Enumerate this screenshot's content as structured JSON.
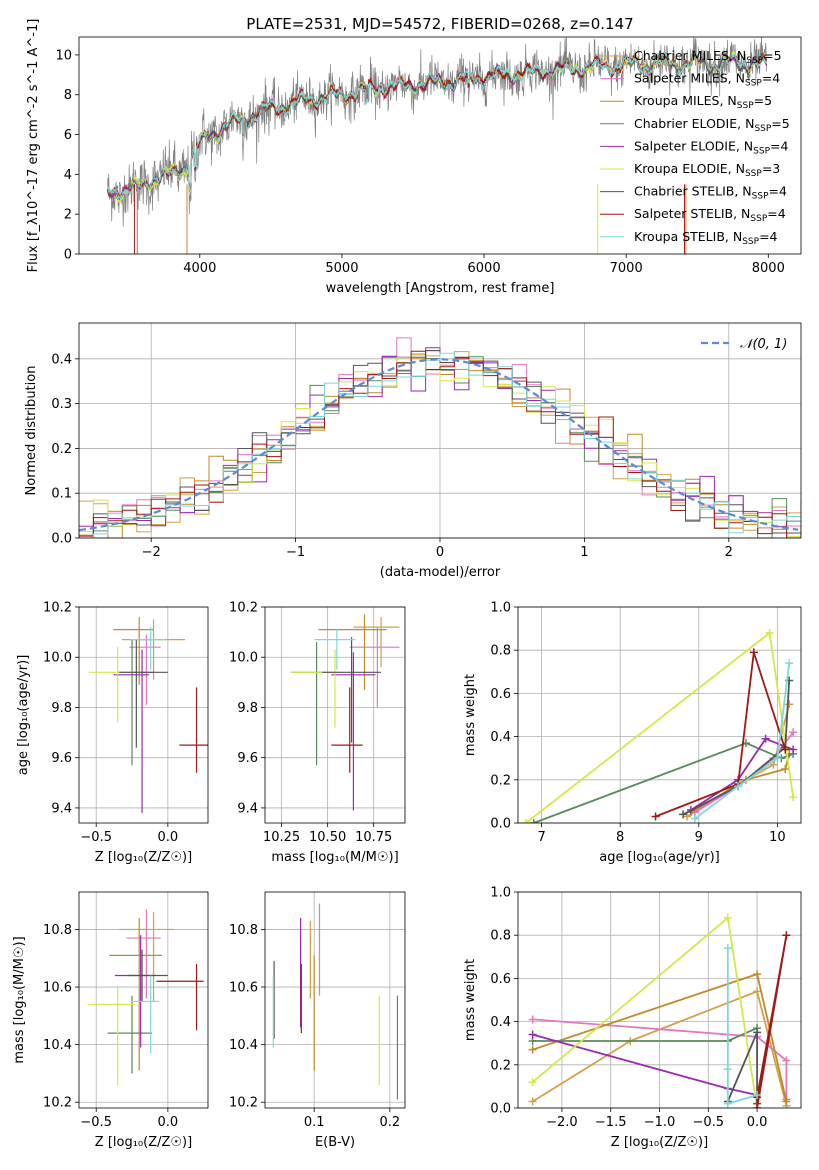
{
  "figure_title": "PLATE=2531, MJD=54572, FIBERID=0268, z=0.147",
  "models": [
    {
      "label": "Chabrier MILES",
      "nssp": "5",
      "color": "#d1a04a"
    },
    {
      "label": "Salpeter MILES",
      "nssp": "4",
      "color": "#e377c2"
    },
    {
      "label": "Kroupa MILES",
      "nssp": "5",
      "color": "#c08a2a"
    },
    {
      "label": "Chabrier ELODIE",
      "nssp": "5",
      "color": "#5a8a5a"
    },
    {
      "label": "Salpeter ELODIE",
      "nssp": "4",
      "color": "#9a2ab0"
    },
    {
      "label": "Kroupa ELODIE",
      "nssp": "3",
      "color": "#d5e84a"
    },
    {
      "label": "Chabrier STELIB",
      "nssp": "4",
      "color": "#555555"
    },
    {
      "label": "Salpeter STELIB",
      "nssp": "4",
      "color": "#a01818"
    },
    {
      "label": "Kroupa STELIB",
      "nssp": "4",
      "color": "#7ed8d8"
    }
  ],
  "chart_data": [
    {
      "id": "spectrum",
      "type": "line",
      "xlabel": "wavelength [Angstrom, rest frame]",
      "ylabel": "Flux [f_λ10^-17 erg cm^-2 s^-1 A^-1]",
      "xlim": [
        3150,
        8230
      ],
      "ylim": [
        0,
        10.9
      ],
      "xticks": [
        4000,
        5000,
        6000,
        7000,
        8000
      ],
      "yticks": [
        0,
        2,
        4,
        6,
        8,
        10
      ],
      "grid": false,
      "legend": "top-right",
      "data_color": "#808080",
      "continuum": {
        "x": [
          3350,
          3500,
          3700,
          3900,
          4000,
          4200,
          4500,
          4800,
          5000,
          5200,
          5500,
          5800,
          6000,
          6300,
          6600,
          7000,
          7400,
          7800,
          8000
        ],
        "y": [
          3.1,
          3.2,
          3.8,
          4.3,
          5.6,
          6.5,
          7.3,
          7.8,
          8.0,
          8.3,
          8.5,
          8.7,
          8.9,
          9.1,
          9.3,
          9.5,
          9.6,
          9.6,
          9.5
        ]
      }
    },
    {
      "id": "residuals",
      "type": "histogram",
      "xlabel": "(data-model)/error",
      "ylabel": "Normed distribution",
      "xlim": [
        -2.5,
        2.5
      ],
      "ylim": [
        0,
        0.48
      ],
      "xticks": [
        -2,
        -1,
        0,
        1,
        2
      ],
      "yticks": [
        0.0,
        0.1,
        0.2,
        0.3,
        0.4
      ],
      "grid": true,
      "legend": "top-right",
      "bin_width": 0.1,
      "reference": {
        "label": "𝒩(0, 1)",
        "color": "#5b8bd6"
      }
    },
    {
      "id": "age_vs_Z",
      "type": "errorbar",
      "xlabel": "Z [log₁₀(Z/Z☉)]",
      "ylabel": "age  [log₁₀(age/yr)]",
      "xlim": [
        -0.62,
        0.28
      ],
      "ylim": [
        9.34,
        10.2
      ],
      "xticks": [
        -0.5,
        0.0
      ],
      "yticks": [
        9.4,
        9.6,
        9.8,
        10.0,
        10.2
      ],
      "grid": true,
      "points": [
        {
          "x": -0.1,
          "y": 10.07,
          "xerr": [
            0.22,
            0.22
          ],
          "yerr": [
            0.16,
            0.08
          ]
        },
        {
          "x": -0.15,
          "y": 10.04,
          "xerr": [
            0.12,
            0.1
          ],
          "yerr": [
            0.23,
            0.05
          ]
        },
        {
          "x": -0.2,
          "y": 10.11,
          "xerr": [
            0.18,
            0.1
          ],
          "yerr": [
            0.22,
            0.05
          ]
        },
        {
          "x": -0.25,
          "y": 9.94,
          "xerr": [
            0.1,
            0.15
          ],
          "yerr": [
            0.37,
            0.13
          ]
        },
        {
          "x": -0.18,
          "y": 9.93,
          "xerr": [
            0.2,
            0.05
          ],
          "yerr": [
            0.55,
            0.1
          ]
        },
        {
          "x": -0.35,
          "y": 9.94,
          "xerr": [
            0.2,
            0.15
          ],
          "yerr": [
            0.2,
            0.1
          ]
        },
        {
          "x": -0.22,
          "y": 9.94,
          "xerr": [
            0.12,
            0.22
          ],
          "yerr": [
            0.3,
            0.13
          ]
        },
        {
          "x": 0.2,
          "y": 9.65,
          "xerr": [
            0.12,
            0.08
          ],
          "yerr": [
            0.11,
            0.23
          ]
        },
        {
          "x": -0.12,
          "y": 10.07,
          "xerr": [
            0.15,
            0.1
          ],
          "yerr": [
            0.12,
            0.05
          ]
        }
      ]
    },
    {
      "id": "age_vs_mass",
      "type": "errorbar",
      "xlabel": "mass [log₁₀(M/M☉)]",
      "ylabel": "",
      "xlim": [
        10.16,
        10.92
      ],
      "ylim": [
        9.34,
        10.2
      ],
      "xticks": [
        10.25,
        10.5,
        10.75
      ],
      "yticks": [
        9.4,
        9.6,
        9.8,
        10.0,
        10.2
      ],
      "grid": true,
      "points": [
        {
          "x": 10.79,
          "y": 10.12,
          "xerr": [
            0.15,
            0.1
          ],
          "yerr": [
            0.16,
            0.04
          ]
        },
        {
          "x": 10.77,
          "y": 10.04,
          "xerr": [
            0.15,
            0.12
          ],
          "yerr": [
            0.24,
            0.08
          ]
        },
        {
          "x": 10.7,
          "y": 10.11,
          "xerr": [
            0.25,
            0.12
          ],
          "yerr": [
            0.24,
            0.06
          ]
        },
        {
          "x": 10.44,
          "y": 9.94,
          "xerr": [
            0.14,
            0.12
          ],
          "yerr": [
            0.37,
            0.12
          ]
        },
        {
          "x": 10.64,
          "y": 9.93,
          "xerr": [
            0.12,
            0.12
          ],
          "yerr": [
            0.54,
            0.09
          ]
        },
        {
          "x": 10.54,
          "y": 9.94,
          "xerr": [
            0.24,
            0.04
          ],
          "yerr": [
            0.22,
            0.09
          ]
        },
        {
          "x": 10.63,
          "y": 9.94,
          "xerr": [
            0.16,
            0.16
          ],
          "yerr": [
            0.28,
            0.14
          ]
        },
        {
          "x": 10.62,
          "y": 9.65,
          "xerr": [
            0.1,
            0.07
          ],
          "yerr": [
            0.11,
            0.23
          ]
        },
        {
          "x": 10.55,
          "y": 10.07,
          "xerr": [
            0.12,
            0.1
          ],
          "yerr": [
            0.12,
            0.04
          ]
        }
      ]
    },
    {
      "id": "weight_vs_age",
      "type": "line",
      "xlabel": "age  [log₁₀(age/yr)]",
      "ylabel": "mass weight",
      "xlim": [
        6.7,
        10.3
      ],
      "ylim": [
        0,
        1
      ],
      "xticks": [
        7,
        8,
        9,
        10
      ],
      "yticks": [
        0.0,
        0.2,
        0.4,
        0.6,
        0.8,
        1.0
      ],
      "grid": true,
      "series": [
        {
          "x": [
            8.85,
            9.5,
            9.95,
            10.15
          ],
          "y": [
            0.03,
            0.18,
            0.27,
            0.55
          ]
        },
        {
          "x": [
            8.95,
            9.5,
            9.95,
            10.2
          ],
          "y": [
            0.05,
            0.17,
            0.3,
            0.42
          ]
        },
        {
          "x": [
            8.9,
            9.6,
            10.1,
            10.15
          ],
          "y": [
            0.05,
            0.2,
            0.25,
            0.32
          ]
        },
        {
          "x": [
            6.9,
            9.6,
            10.05,
            10.2
          ],
          "y": [
            0.0,
            0.37,
            0.3,
            0.32
          ]
        },
        {
          "x": [
            8.9,
            9.5,
            9.85,
            10.2
          ],
          "y": [
            0.06,
            0.2,
            0.39,
            0.34
          ]
        },
        {
          "x": [
            6.8,
            9.9,
            10.2
          ],
          "y": [
            0.0,
            0.88,
            0.12
          ]
        },
        {
          "x": [
            8.8,
            9.5,
            10.1,
            10.15
          ],
          "y": [
            0.04,
            0.17,
            0.35,
            0.66
          ]
        },
        {
          "x": [
            8.45,
            9.5,
            9.7,
            10.1
          ],
          "y": [
            0.03,
            0.18,
            0.79,
            0.34
          ]
        },
        {
          "x": [
            8.95,
            9.5,
            10.0,
            10.15
          ],
          "y": [
            0.02,
            0.17,
            0.3,
            0.74
          ]
        }
      ]
    },
    {
      "id": "mass_vs_Z",
      "type": "errorbar",
      "xlabel": "Z [log₁₀(Z/Z☉)]",
      "ylabel": "mass [log₁₀(M/M☉)]",
      "xlim": [
        -0.62,
        0.28
      ],
      "ylim": [
        10.18,
        10.93
      ],
      "xticks": [
        -0.5,
        0.0
      ],
      "yticks": [
        10.2,
        10.4,
        10.6,
        10.8
      ],
      "grid": true,
      "points": [
        {
          "x": -0.1,
          "y": 10.8,
          "xerr": [
            0.24,
            0.14
          ],
          "yerr": [
            0.25,
            0.06
          ]
        },
        {
          "x": -0.15,
          "y": 10.77,
          "xerr": [
            0.14,
            0.1
          ],
          "yerr": [
            0.21,
            0.1
          ]
        },
        {
          "x": -0.2,
          "y": 10.71,
          "xerr": [
            0.21,
            0.16
          ],
          "yerr": [
            0.4,
            0.13
          ]
        },
        {
          "x": -0.25,
          "y": 10.44,
          "xerr": [
            0.17,
            0.14
          ],
          "yerr": [
            0.14,
            0.13
          ]
        },
        {
          "x": -0.19,
          "y": 10.64,
          "xerr": [
            0.18,
            0.1
          ],
          "yerr": [
            0.25,
            0.14
          ]
        },
        {
          "x": -0.35,
          "y": 10.54,
          "xerr": [
            0.21,
            0.12
          ],
          "yerr": [
            0.28,
            0.06
          ]
        },
        {
          "x": -0.18,
          "y": 10.64,
          "xerr": [
            0.1,
            0.18
          ],
          "yerr": [
            0.09,
            0.09
          ]
        },
        {
          "x": 0.2,
          "y": 10.62,
          "xerr": [
            0.28,
            0.05
          ],
          "yerr": [
            0.17,
            0.06
          ]
        },
        {
          "x": -0.12,
          "y": 10.55,
          "xerr": [
            0.14,
            0.06
          ],
          "yerr": [
            0.18,
            0.09
          ]
        }
      ]
    },
    {
      "id": "mass_vs_EBV",
      "type": "errorbar",
      "xlabel": "E(B-V)",
      "ylabel": "",
      "xlim": [
        0.035,
        0.22
      ],
      "ylim": [
        10.18,
        10.93
      ],
      "xticks": [
        0.1,
        0.2
      ],
      "yticks": [
        10.2,
        10.4,
        10.6,
        10.8
      ],
      "grid": true,
      "points": [
        {
          "x": 0.095,
          "y": 10.72,
          "xerr": [
            0,
            0
          ],
          "yerr": [
            0.16,
            0.11
          ]
        },
        {
          "x": 0.107,
          "y": 10.77,
          "xerr": [
            0,
            0
          ],
          "yerr": [
            0.2,
            0.12
          ]
        },
        {
          "x": 0.1,
          "y": 10.5,
          "xerr": [
            0,
            0
          ],
          "yerr": [
            0.19,
            0.21
          ]
        },
        {
          "x": 0.21,
          "y": 10.39,
          "xerr": [
            0,
            0
          ],
          "yerr": [
            0.18,
            0.18
          ]
        },
        {
          "x": 0.082,
          "y": 10.66,
          "xerr": [
            0,
            0
          ],
          "yerr": [
            0.2,
            0.18
          ]
        },
        {
          "x": 0.186,
          "y": 10.42,
          "xerr": [
            0,
            0
          ],
          "yerr": [
            0.16,
            0.15
          ]
        },
        {
          "x": 0.047,
          "y": 10.55,
          "xerr": [
            0,
            0
          ],
          "yerr": [
            0.13,
            0.14
          ]
        },
        {
          "x": 0.083,
          "y": 10.56,
          "xerr": [
            0,
            0
          ],
          "yerr": [
            0.12,
            0.12
          ]
        },
        {
          "x": 0.046,
          "y": 10.51,
          "xerr": [
            0,
            0
          ],
          "yerr": [
            0.12,
            0.13
          ]
        }
      ]
    },
    {
      "id": "weight_vs_Z",
      "type": "line",
      "xlabel": "Z [log₁₀(Z/Z☉)]",
      "ylabel": "mass weight",
      "xlim": [
        -2.45,
        0.45
      ],
      "ylim": [
        0,
        1
      ],
      "xticks": [
        -2.0,
        -1.5,
        -1.0,
        -0.5,
        0.0
      ],
      "yticks": [
        0.0,
        0.2,
        0.4,
        0.6,
        0.8,
        1.0
      ],
      "grid": true,
      "series": [
        {
          "x": [
            -2.3,
            -1.3,
            0.0,
            0.3
          ],
          "y": [
            0.03,
            0.31,
            0.54,
            0.01
          ]
        },
        {
          "x": [
            -2.3,
            0.0,
            0.3,
            0.3
          ],
          "y": [
            0.41,
            0.33,
            0.22,
            0.04
          ]
        },
        {
          "x": [
            -2.3,
            0.0,
            0.3
          ],
          "y": [
            0.27,
            0.62,
            0.03
          ]
        },
        {
          "x": [
            -2.3,
            -0.3,
            0.0
          ],
          "y": [
            0.31,
            0.31,
            0.37
          ]
        },
        {
          "x": [
            -2.3,
            -0.3,
            0.0
          ],
          "y": [
            0.34,
            0.09,
            0.06
          ]
        },
        {
          "x": [
            -2.3,
            -0.3,
            0.0
          ],
          "y": [
            0.12,
            0.88,
            0.0
          ]
        },
        {
          "x": [
            -0.3,
            0.0,
            0.0
          ],
          "y": [
            0.03,
            0.35,
            0.02
          ]
        },
        {
          "x": [
            0.0,
            0.3,
            0.0
          ],
          "y": [
            0.0,
            0.8,
            0.05
          ]
        },
        {
          "x": [
            -0.3,
            -0.3,
            -0.3,
            0.0
          ],
          "y": [
            0.74,
            0.18,
            0.02,
            0.06
          ]
        }
      ]
    }
  ]
}
